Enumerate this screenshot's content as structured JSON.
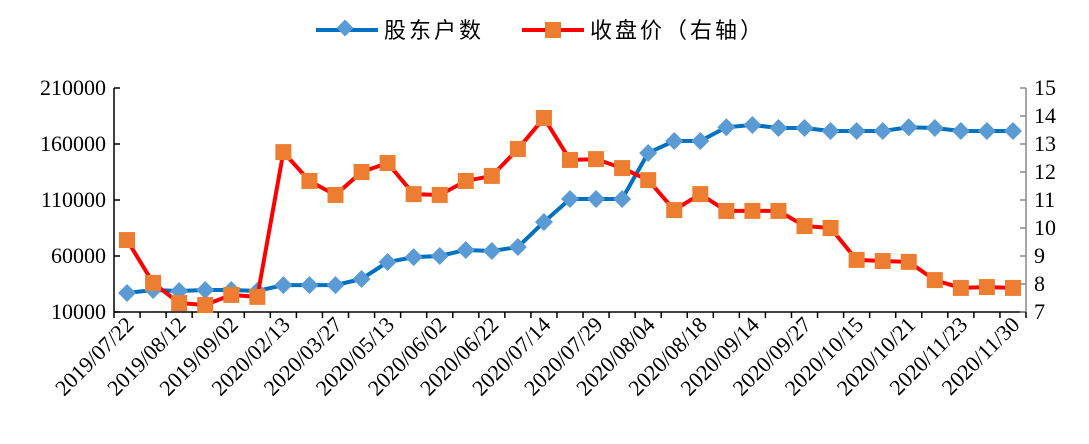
{
  "chart_data": {
    "type": "line",
    "title": "",
    "legend_position": "top",
    "grid": false,
    "x_tick_labels": [
      "2019/07/22",
      "2019/08/12",
      "2019/09/02",
      "2020/02/13",
      "2020/03/27",
      "2020/05/13",
      "2020/06/02",
      "2020/06/22",
      "2020/07/14",
      "2020/07/29",
      "2020/08/04",
      "2020/08/18",
      "2020/09/14",
      "2020/09/27",
      "2020/10/15",
      "2020/10/21",
      "2020/11/23",
      "2020/11/30"
    ],
    "point_count": 35,
    "y_left": {
      "lim": [
        10000,
        210000
      ],
      "ticks": [
        "10000",
        "60000",
        "110000",
        "160000",
        "210000"
      ]
    },
    "y_right": {
      "lim": [
        7,
        15
      ],
      "ticks": [
        "7",
        "8",
        "9",
        "10",
        "11",
        "12",
        "13",
        "14",
        "15"
      ]
    },
    "series": [
      {
        "name": "股东户数",
        "axis": "left",
        "color": "#0070C0",
        "marker": "diamond",
        "marker_color": "#5B9BD5",
        "values": [
          27000,
          29600,
          28800,
          29600,
          29600,
          28800,
          34000,
          34000,
          34000,
          39500,
          54600,
          59000,
          60000,
          65400,
          64500,
          68000,
          90400,
          110900,
          110900,
          110900,
          152000,
          162700,
          162700,
          175000,
          177000,
          174300,
          174300,
          171600,
          171600,
          171600,
          175000,
          174300,
          171600,
          171600,
          171600
        ]
      },
      {
        "name": "收盘价（右轴）",
        "axis": "right",
        "color": "#FF0000",
        "marker": "square",
        "marker_color": "#ED7D31",
        "values": [
          9.57,
          8.04,
          7.32,
          7.25,
          7.61,
          7.54,
          12.71,
          11.68,
          11.18,
          12.0,
          12.32,
          11.21,
          11.18,
          11.68,
          11.86,
          12.82,
          13.93,
          12.43,
          12.46,
          12.14,
          11.71,
          10.64,
          11.21,
          10.61,
          10.61,
          10.61,
          10.07,
          10.0,
          8.86,
          8.82,
          8.79,
          8.14,
          7.86,
          7.89,
          7.86
        ]
      }
    ]
  }
}
